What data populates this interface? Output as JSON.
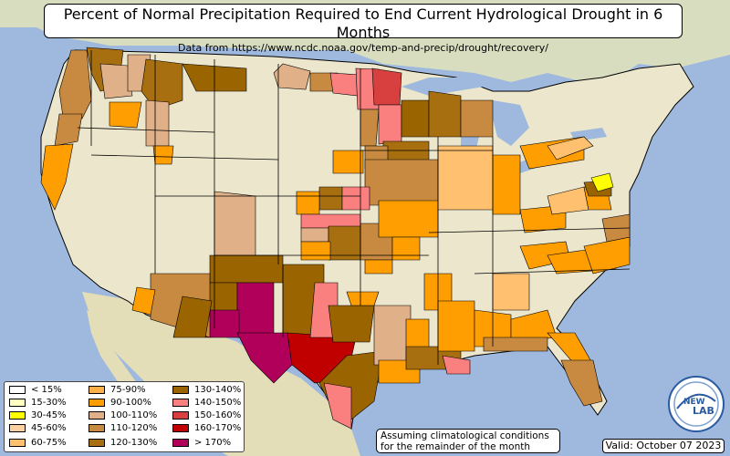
{
  "header": {
    "title": "Percent of Normal Precipitation Required to End Current Hydrological Drought in 6 Months",
    "subtitle": "Data from https://www.ncdc.noaa.gov/temp-and-precip/drought/recovery/"
  },
  "legend": {
    "items": [
      {
        "label": "< 15%",
        "color": "#ffffff"
      },
      {
        "label": "15-30%",
        "color": "#ffffc0"
      },
      {
        "label": "30-45%",
        "color": "#ffff00"
      },
      {
        "label": "45-60%",
        "color": "#fcd0a0"
      },
      {
        "label": "60-75%",
        "color": "#ffc070"
      },
      {
        "label": "75-90%",
        "color": "#fdb04a"
      },
      {
        "label": "90-100%",
        "color": "#ff9e00"
      },
      {
        "label": "100-110%",
        "color": "#e0b088"
      },
      {
        "label": "110-120%",
        "color": "#c88a40"
      },
      {
        "label": "120-130%",
        "color": "#a86f10"
      },
      {
        "label": "130-140%",
        "color": "#9a6400"
      },
      {
        "label": "140-150%",
        "color": "#fa8080"
      },
      {
        "label": "150-160%",
        "color": "#d84040"
      },
      {
        "label": "160-170%",
        "color": "#c00000"
      },
      {
        "label": "> 170%",
        "color": "#b0005a"
      }
    ]
  },
  "note": {
    "line1": "Assuming climatological conditions",
    "line2": "for the remainder of the month"
  },
  "valid": "Valid: October 07 2023",
  "logo": {
    "line1": "NEW",
    "line2": "LAB"
  },
  "colors": {
    "ocean": "#9fb9de",
    "land": "#e8e4cc",
    "border": "#000000"
  }
}
